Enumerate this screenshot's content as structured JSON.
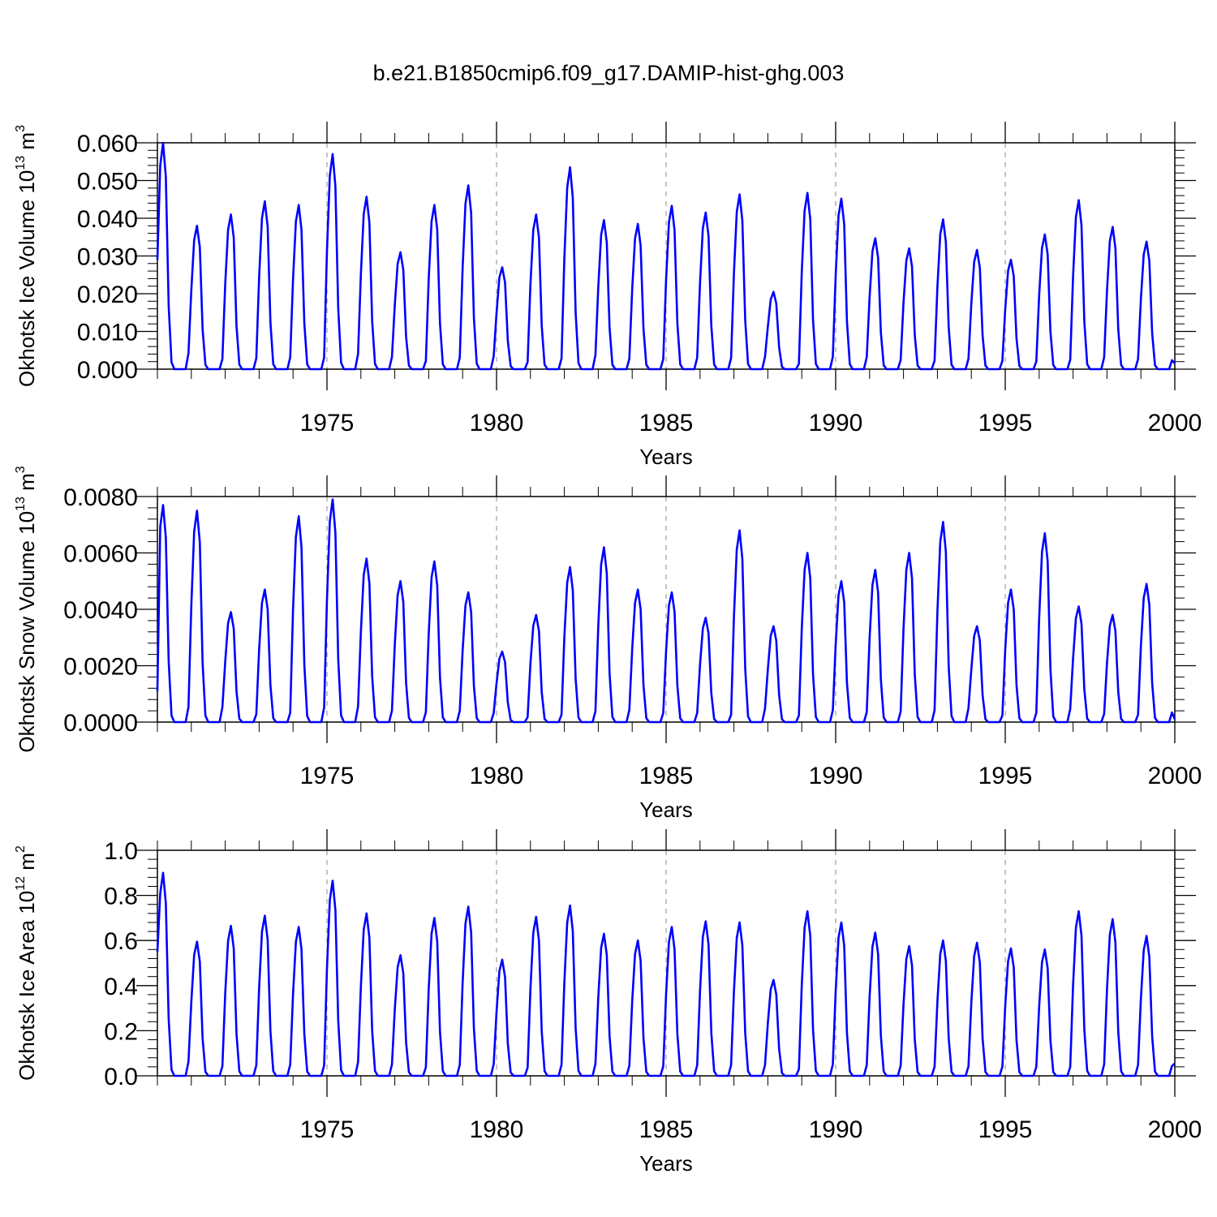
{
  "figure_title": "b.e21.B1850cmip6.f09_g17.DAMIP-hist-ghg.003",
  "line_color": "#0000ff",
  "axis_color": "#000000",
  "grid_color": "#888888",
  "chart_data": [
    {
      "type": "line",
      "id": "ice-volume",
      "title": "",
      "xlabel": "Years",
      "ylabel": "Okhotsk Ice Volume 10",
      "ylabel_exp": "13",
      "ylabel_unit": " m",
      "ylabel_unit_exp": "3",
      "xlim": [
        1970.0,
        2000.0
      ],
      "ylim": [
        0.0,
        0.06
      ],
      "xticks": [
        1975,
        1980,
        1985,
        1990,
        1995,
        2000
      ],
      "xtick_labels": [
        "1975",
        "1980",
        "1985",
        "1990",
        "1995",
        "2000"
      ],
      "yticks": [
        0.0,
        0.01,
        0.02,
        0.03,
        0.04,
        0.05,
        0.06
      ],
      "ytick_labels": [
        "0.000",
        "0.010",
        "0.020",
        "0.030",
        "0.040",
        "0.050",
        "0.060"
      ],
      "y_minor_step": 0.002,
      "vgrid": [
        1975,
        1980,
        1985,
        1990,
        1995
      ],
      "start_value": 0.029,
      "end_value": 0.0015,
      "series": [
        {
          "name": "Okhotsk Ice Volume",
          "peaks": [
            0.06,
            0.038,
            0.041,
            0.0445,
            0.0435,
            0.057,
            0.0457,
            0.031,
            0.0435,
            0.0487,
            0.027,
            0.041,
            0.0535,
            0.0395,
            0.0385,
            0.0433,
            0.0415,
            0.0463,
            0.0205,
            0.0467,
            0.0452,
            0.0347,
            0.032,
            0.0397,
            0.0316,
            0.029,
            0.0357,
            0.0448,
            0.0377,
            0.0338
          ]
        }
      ]
    },
    {
      "type": "line",
      "id": "snow-volume",
      "title": "",
      "xlabel": "Years",
      "ylabel": "Okhotsk Snow Volume 10",
      "ylabel_exp": "13",
      "ylabel_unit": " m",
      "ylabel_unit_exp": "3",
      "xlim": [
        1970.0,
        2000.0
      ],
      "ylim": [
        0.0,
        0.008
      ],
      "xticks": [
        1975,
        1980,
        1985,
        1990,
        1995,
        2000
      ],
      "xtick_labels": [
        "1975",
        "1980",
        "1985",
        "1990",
        "1995",
        "2000"
      ],
      "yticks": [
        0.0,
        0.002,
        0.004,
        0.006,
        0.008
      ],
      "ytick_labels": [
        "0.0000",
        "0.0020",
        "0.0040",
        "0.0060",
        "0.0080"
      ],
      "y_minor_step": 0.0004,
      "vgrid": [
        1975,
        1980,
        1985,
        1990,
        1995
      ],
      "start_value": 0.0011,
      "end_value": 0.0001,
      "series": [
        {
          "name": "Okhotsk Snow Volume",
          "peaks": [
            0.0077,
            0.0075,
            0.0039,
            0.0047,
            0.0073,
            0.0079,
            0.0058,
            0.005,
            0.0057,
            0.0046,
            0.0025,
            0.0038,
            0.0055,
            0.0062,
            0.0047,
            0.0046,
            0.0037,
            0.0068,
            0.0034,
            0.006,
            0.005,
            0.0054,
            0.006,
            0.0071,
            0.0034,
            0.0047,
            0.0067,
            0.0041,
            0.0038,
            0.0049
          ]
        }
      ]
    },
    {
      "type": "line",
      "id": "ice-area",
      "title": "",
      "xlabel": "Years",
      "ylabel": "Okhotsk Ice Area 10",
      "ylabel_exp": "12",
      "ylabel_unit": " m",
      "ylabel_unit_exp": "2",
      "xlim": [
        1970.0,
        2000.0
      ],
      "ylim": [
        0.0,
        1.0
      ],
      "xticks": [
        1975,
        1980,
        1985,
        1990,
        1995,
        2000
      ],
      "xtick_labels": [
        "1975",
        "1980",
        "1985",
        "1990",
        "1995",
        "2000"
      ],
      "yticks": [
        0.0,
        0.2,
        0.4,
        0.6,
        0.8,
        1.0
      ],
      "ytick_labels": [
        "0.0",
        "0.2",
        "0.4",
        "0.6",
        "0.8",
        "1.0"
      ],
      "y_minor_step": 0.04,
      "vgrid": [
        1975,
        1980,
        1985,
        1990,
        1995
      ],
      "start_value": 0.55,
      "end_value": 0.055,
      "series": [
        {
          "name": "Okhotsk Ice Area",
          "peaks": [
            0.9,
            0.595,
            0.665,
            0.71,
            0.66,
            0.865,
            0.72,
            0.535,
            0.7,
            0.75,
            0.515,
            0.705,
            0.755,
            0.63,
            0.6,
            0.66,
            0.685,
            0.68,
            0.425,
            0.73,
            0.68,
            0.635,
            0.575,
            0.6,
            0.59,
            0.565,
            0.56,
            0.73,
            0.695,
            0.62
          ]
        }
      ]
    }
  ]
}
